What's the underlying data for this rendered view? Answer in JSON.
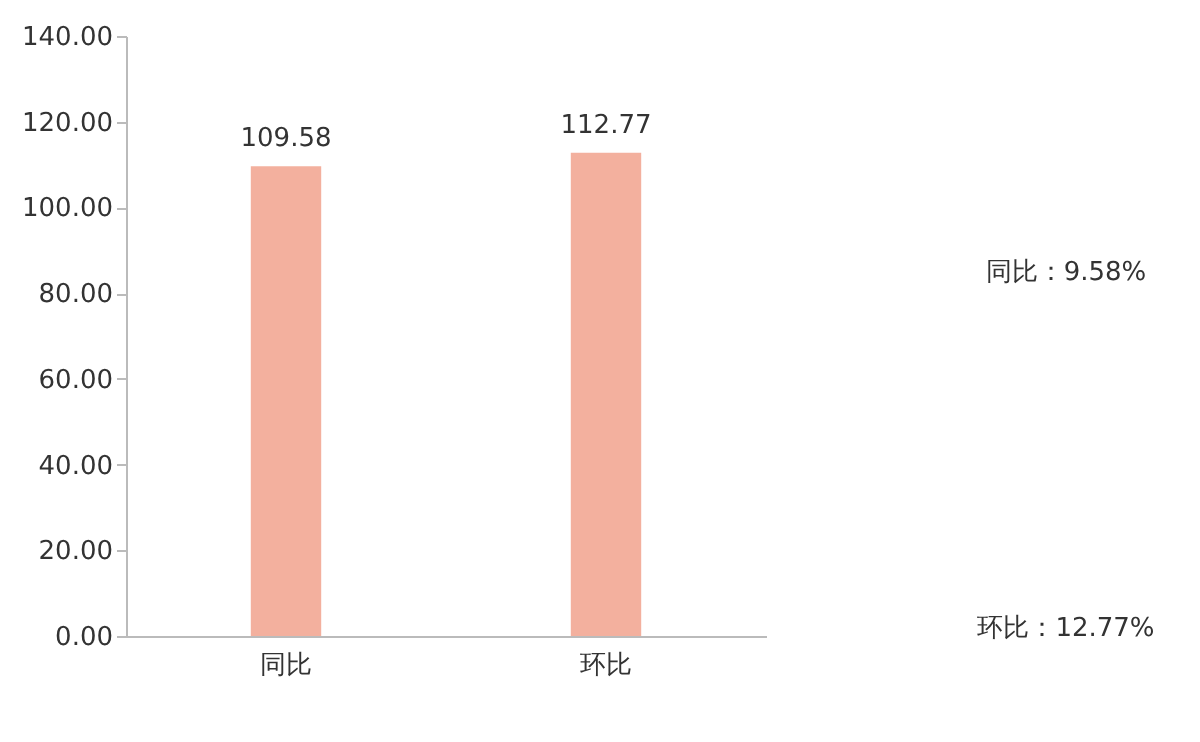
{
  "chart_data": {
    "type": "bar",
    "categories": [
      "同比",
      "环比"
    ],
    "series": [
      {
        "color": "#f3b09e",
        "values": [
          109.58,
          112.77
        ]
      }
    ],
    "ylim": [
      0,
      140
    ],
    "yticks": [
      {
        "value": 0,
        "label": "0.00"
      },
      {
        "value": 20,
        "label": "20.00"
      },
      {
        "value": 40,
        "label": "40.00"
      },
      {
        "value": 60,
        "label": "60.00"
      },
      {
        "value": 80,
        "label": "80.00"
      },
      {
        "value": 100,
        "label": "100.00"
      },
      {
        "value": 120,
        "label": "120.00"
      },
      {
        "value": 140,
        "label": "140.00"
      }
    ],
    "data_labels": true,
    "grid": false,
    "annotations": [
      "同比：9.58%",
      "环比：12.77%"
    ]
  }
}
